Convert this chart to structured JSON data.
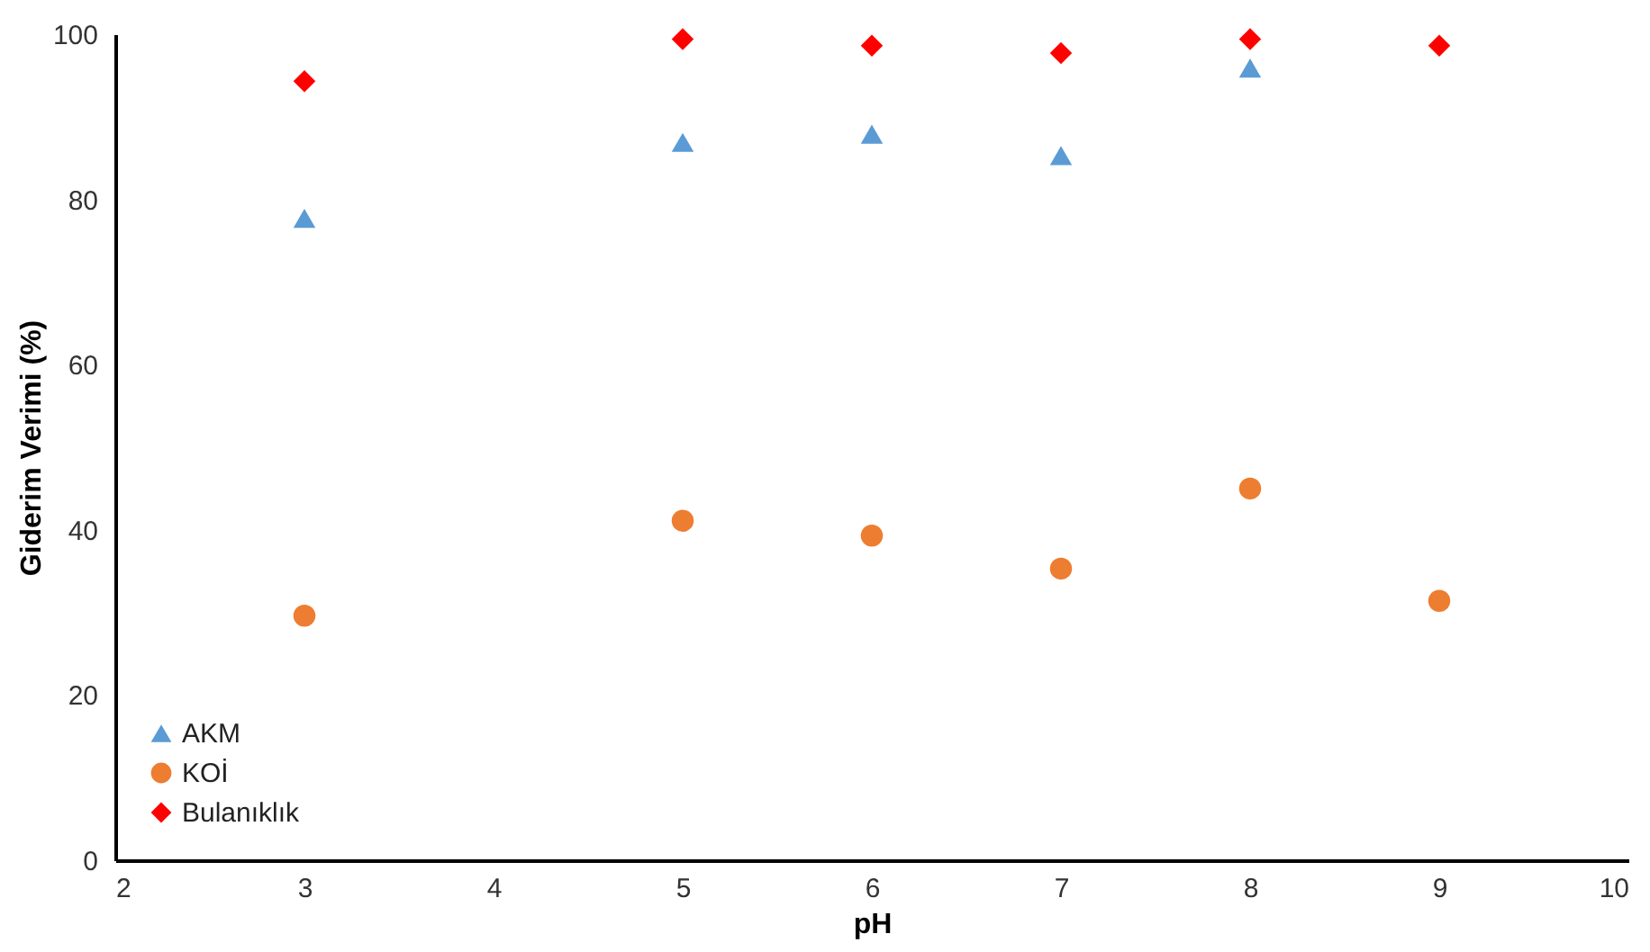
{
  "chart_data": {
    "type": "scatter",
    "xlabel": "pH",
    "ylabel": "Giderim Verimi (%)",
    "x": [
      3,
      5,
      6,
      7,
      8,
      9
    ],
    "series": [
      {
        "name": "AKM",
        "color": "#5b9bd5",
        "marker": "triangle",
        "values": [
          77.7,
          86.9,
          87.9,
          85.3,
          95.9,
          null
        ]
      },
      {
        "name": "KOİ",
        "color": "#ed7d31",
        "marker": "circle",
        "values": [
          29.6,
          41.1,
          39.3,
          35.3,
          45.0,
          31.4
        ]
      },
      {
        "name": "Bulanıklık",
        "color": "#ff0000",
        "marker": "diamond",
        "values": [
          94.3,
          99.4,
          98.6,
          97.7,
          99.4,
          98.6
        ]
      }
    ],
    "xlim": [
      2,
      10
    ],
    "xticks": [
      2,
      3,
      4,
      5,
      6,
      7,
      8,
      9,
      10
    ],
    "ylim": [
      0,
      100
    ],
    "yticks": [
      0,
      20,
      40,
      60,
      80,
      100
    ],
    "grid": false,
    "legend": "bottom left"
  }
}
